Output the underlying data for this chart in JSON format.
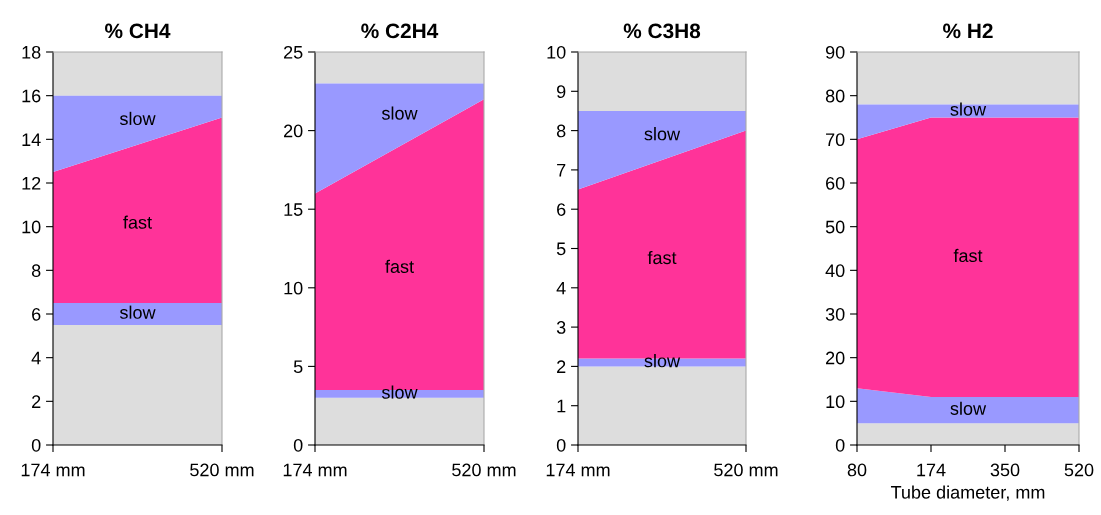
{
  "chart_data": [
    {
      "type": "area",
      "title": "% CH4",
      "stacked": true,
      "legend": false,
      "categories": [
        "174 mm",
        "520 mm"
      ],
      "ylim": [
        0,
        18
      ],
      "yticks": [
        0,
        2,
        4,
        6,
        8,
        10,
        12,
        14,
        16,
        18
      ],
      "bands": [
        {
          "axis": "y",
          "from": 16,
          "to": 18,
          "color": "#dddddd"
        }
      ],
      "series": [
        {
          "color": "#dddddd",
          "values": [
            5.5,
            5.5
          ]
        },
        {
          "name": "slow",
          "color": "#9999ff",
          "values": [
            1,
            1
          ]
        },
        {
          "name": "fast",
          "color": "#ff3399",
          "values": [
            6,
            8.5
          ]
        },
        {
          "name": "slow",
          "color": "#9999ff",
          "values": [
            3.5,
            1
          ]
        }
      ]
    },
    {
      "type": "area",
      "title": "% C2H4",
      "stacked": true,
      "legend": false,
      "categories": [
        "174 mm",
        "520 mm"
      ],
      "ylim": [
        0,
        25
      ],
      "yticks": [
        0,
        5,
        10,
        15,
        20,
        25
      ],
      "bands": [
        {
          "axis": "y",
          "from": 23,
          "to": 25,
          "color": "#dddddd"
        }
      ],
      "series": [
        {
          "color": "#dddddd",
          "values": [
            3,
            3
          ]
        },
        {
          "name": "slow",
          "color": "#9999ff",
          "values": [
            0.5,
            0.5
          ]
        },
        {
          "name": "fast",
          "color": "#ff3399",
          "values": [
            12.5,
            18.5
          ]
        },
        {
          "name": "slow",
          "color": "#9999ff",
          "values": [
            7,
            1
          ]
        }
      ]
    },
    {
      "type": "area",
      "title": "% C3H8",
      "stacked": true,
      "legend": false,
      "categories": [
        "174 mm",
        "520 mm"
      ],
      "ylim": [
        0,
        10
      ],
      "yticks": [
        0,
        1,
        2,
        3,
        4,
        5,
        6,
        7,
        8,
        9,
        10
      ],
      "bands": [
        {
          "axis": "y",
          "from": 8.5,
          "to": 10,
          "color": "#dddddd"
        }
      ],
      "series": [
        {
          "color": "#dddddd",
          "values": [
            2,
            2
          ]
        },
        {
          "name": "slow",
          "color": "#9999ff",
          "values": [
            0.2,
            0.2
          ]
        },
        {
          "name": "fast",
          "color": "#ff3399",
          "values": [
            4.3,
            5.8
          ]
        },
        {
          "name": "slow",
          "color": "#9999ff",
          "values": [
            2,
            0.5
          ]
        }
      ]
    },
    {
      "type": "area",
      "title": "% H2",
      "xlabel": "Tube diameter, mm",
      "stacked": true,
      "legend": false,
      "grid": false,
      "categories": [
        "80",
        "174",
        "350",
        "520"
      ],
      "ylim": [
        0,
        90
      ],
      "yticks": [
        0,
        10,
        20,
        30,
        40,
        50,
        60,
        70,
        80,
        90
      ],
      "bands": [
        {
          "axis": "y",
          "from": 78,
          "to": 90,
          "color": "#dddddd"
        }
      ],
      "series": [
        {
          "color": "#dddddd",
          "values": [
            5,
            5,
            5,
            5
          ]
        },
        {
          "name": "slow",
          "color": "#9999ff",
          "values": [
            8,
            6,
            6,
            6
          ]
        },
        {
          "name": "fast",
          "color": "#ff3399",
          "values": [
            57,
            64,
            64,
            64
          ]
        },
        {
          "name": "slow",
          "color": "#9999ff",
          "values": [
            8,
            3,
            3,
            3
          ]
        }
      ]
    }
  ]
}
